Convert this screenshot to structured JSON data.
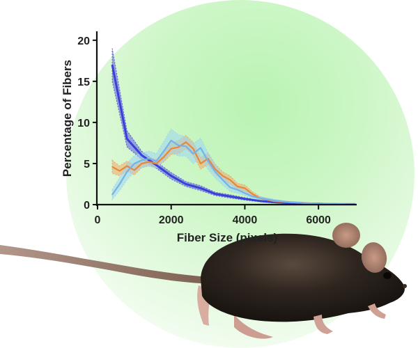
{
  "chart_data": {
    "type": "line",
    "title": "",
    "xlabel": "Fiber Size (pixels)",
    "ylabel": "Percentage of Fibers",
    "xlim": [
      0,
      7000
    ],
    "ylim": [
      0,
      21
    ],
    "xticks": [
      0,
      2000,
      4000,
      6000
    ],
    "yticks": [
      0,
      5,
      10,
      15,
      20
    ],
    "xtick_labels": [
      "0",
      "2000",
      "4000",
      "6000"
    ],
    "ytick_labels": [
      "0",
      "5",
      "10",
      "15",
      "20"
    ],
    "grid": false,
    "legend": "none",
    "series": [
      {
        "color": "#3b3fd6",
        "band_color": "#5b5fe0",
        "x": [
          400,
          800,
          1200,
          1600,
          2000,
          2400,
          2800,
          3200,
          3600,
          4000,
          4400,
          4800,
          5200,
          5600,
          6000,
          6400,
          6800,
          7000
        ],
        "y": [
          17,
          8,
          6,
          4.8,
          3.5,
          2.5,
          2.0,
          1.3,
          1.0,
          0.7,
          0.45,
          0.3,
          0.2,
          0.1,
          0.1,
          0.05,
          0.05,
          0.05
        ],
        "err": [
          2.0,
          1.0,
          0.5,
          0.4,
          0.4,
          0.3,
          0.3,
          0.2,
          0.2,
          0.15,
          0.1,
          0.1,
          0.08,
          0.05,
          0.05,
          0.03,
          0.03,
          0.03
        ]
      },
      {
        "color": "#e8873a",
        "band_color": "#f3a868",
        "x": [
          400,
          600,
          800,
          1000,
          1200,
          1400,
          1600,
          1800,
          2000,
          2200,
          2400,
          2600,
          2800,
          3000,
          3200,
          3400,
          3600,
          3800,
          4000,
          4200,
          4400,
          4800,
          5200,
          5600,
          6000,
          6400,
          6800,
          7000
        ],
        "y": [
          4.6,
          4.1,
          4.7,
          4.2,
          5.0,
          5.2,
          5.0,
          5.8,
          6.8,
          7.0,
          7.6,
          6.8,
          5.0,
          5.6,
          4.3,
          3.5,
          3.0,
          2.2,
          2.0,
          1.3,
          0.8,
          0.4,
          0.3,
          0.2,
          0.1,
          0.1,
          0.05,
          0.05
        ],
        "err": [
          0.8,
          0.6,
          0.6,
          0.6,
          0.5,
          0.5,
          0.5,
          0.6,
          0.7,
          0.8,
          0.8,
          0.8,
          0.7,
          0.7,
          0.6,
          0.5,
          0.5,
          0.4,
          0.4,
          0.3,
          0.2,
          0.15,
          0.1,
          0.08,
          0.05,
          0.05,
          0.03,
          0.03
        ]
      },
      {
        "color": "#72b3e8",
        "band_color": "#9fd3f3",
        "x": [
          400,
          600,
          800,
          1000,
          1200,
          1400,
          1600,
          1800,
          2000,
          2200,
          2400,
          2600,
          2800,
          3000,
          3200,
          3400,
          3600,
          3800,
          4000,
          4200,
          4400,
          4800,
          5200,
          5600,
          6000,
          6400,
          6800,
          7000
        ],
        "y": [
          1.2,
          2.5,
          4.0,
          5.0,
          5.4,
          5.6,
          5.3,
          6.5,
          7.8,
          7.2,
          7.1,
          6.2,
          6.9,
          5.3,
          4.0,
          3.0,
          2.1,
          1.8,
          1.4,
          1.0,
          0.8,
          0.5,
          0.3,
          0.2,
          0.1,
          0.1,
          0.05,
          0.05
        ],
        "err": [
          0.6,
          0.8,
          1.0,
          1.0,
          0.9,
          0.9,
          0.9,
          1.2,
          1.4,
          1.3,
          1.2,
          1.2,
          1.2,
          1.0,
          0.8,
          0.6,
          0.5,
          0.4,
          0.3,
          0.3,
          0.2,
          0.15,
          0.1,
          0.08,
          0.05,
          0.05,
          0.03,
          0.03
        ]
      }
    ]
  },
  "colors": {
    "background_circle": "#c8f5c2",
    "axis": "#111111",
    "mouse_fur": "#2b221c",
    "mouse_tail": "#9a7a68"
  }
}
